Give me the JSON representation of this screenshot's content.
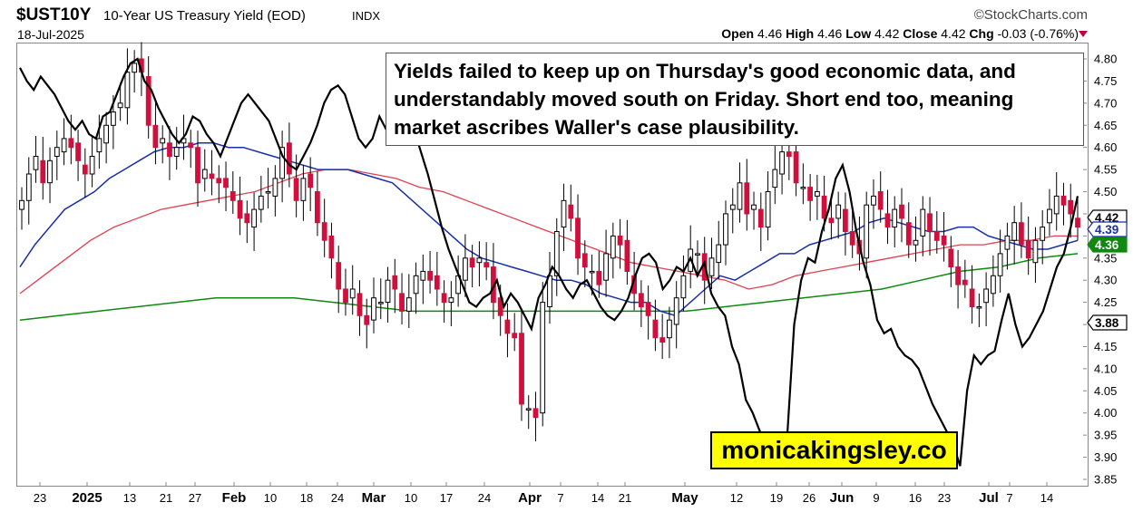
{
  "header": {
    "symbol": "$UST10Y",
    "name": "10-Year US Treasury Yield (EOD)",
    "exchange": "INDX",
    "date": "18-Jul-2025",
    "brand": "©StockCharts.com",
    "open_label": "Open",
    "open": "4.46",
    "high_label": "High",
    "high": "4.46",
    "low_label": "Low",
    "low": "4.42",
    "close_label": "Close",
    "close": "4.42",
    "chg_label": "Chg",
    "chg": "-0.03 (-0.76%)"
  },
  "annotation": "Yields failed to keep up on Thursday's good economic data, and understandably moved south on Friday. Short end too, meaning market ascribes Waller's case plausibility.",
  "watermark": "monicakingsley.co",
  "colors": {
    "up": "#000000",
    "down": "#d0103c",
    "ma_short": "#1a2faa",
    "ma_mid": "#e04050",
    "ma_long": "#118811",
    "overlay": "#000000",
    "watermark_bg": "#ffff00"
  },
  "chart_data": {
    "type": "candlestick",
    "ylim": [
      3.85,
      4.82
    ],
    "yticks": [
      3.85,
      3.9,
      3.95,
      4.0,
      4.05,
      4.1,
      4.15,
      4.2,
      4.25,
      4.3,
      4.35,
      4.4,
      4.45,
      4.5,
      4.55,
      4.6,
      4.65,
      4.7,
      4.75,
      4.8
    ],
    "x_axis_labels": [
      "23",
      "2025",
      "13",
      "21",
      "27",
      "Feb",
      "10",
      "18",
      "24",
      "Mar",
      "10",
      "17",
      "24",
      "Apr",
      "7",
      "14",
      "21",
      "May",
      "12",
      "19",
      "26",
      "Jun",
      "9",
      "16",
      "23",
      "Jul",
      "7",
      "14"
    ],
    "x_axis_bold": [
      "2025",
      "Feb",
      "Mar",
      "Apr",
      "May",
      "Jun",
      "Jul"
    ],
    "price_tags": [
      {
        "value": "4.42",
        "color": "#000000"
      },
      {
        "value": "4.39",
        "color": "#1a2faa"
      },
      {
        "value": "4.36",
        "color": "#118811"
      },
      {
        "value": "3.88",
        "color": "#000000"
      }
    ],
    "closes": [
      4.48,
      4.54,
      4.58,
      4.52,
      4.57,
      4.6,
      4.62,
      4.6,
      4.57,
      4.54,
      4.58,
      4.62,
      4.65,
      4.68,
      4.7,
      4.77,
      4.79,
      4.77,
      4.65,
      4.6,
      4.62,
      4.58,
      4.6,
      4.62,
      4.6,
      4.52,
      4.55,
      4.53,
      4.52,
      4.51,
      4.48,
      4.44,
      4.43,
      4.46,
      4.49,
      4.5,
      4.53,
      4.6,
      4.54,
      4.48,
      4.53,
      4.51,
      4.43,
      4.39,
      4.35,
      4.28,
      4.25,
      4.28,
      4.22,
      4.2,
      4.26,
      4.25,
      4.3,
      4.28,
      4.23,
      4.26,
      4.31,
      4.32,
      4.3,
      4.28,
      4.25,
      4.26,
      4.31,
      4.35,
      4.33,
      4.35,
      4.33,
      4.25,
      4.22,
      4.18,
      4.17,
      4.02,
      4.01,
      3.99,
      4.25,
      4.31,
      4.41,
      4.48,
      4.44,
      4.35,
      4.33,
      4.32,
      4.29,
      4.36,
      4.4,
      4.38,
      4.32,
      4.27,
      4.24,
      4.22,
      4.17,
      4.16,
      4.21,
      4.26,
      4.31,
      4.37,
      4.36,
      4.3,
      4.35,
      4.38,
      4.45,
      4.47,
      4.52,
      4.45,
      4.47,
      4.42,
      4.5,
      4.55,
      4.59,
      4.58,
      4.52,
      4.51,
      4.48,
      4.5,
      4.44,
      4.43,
      4.47,
      4.41,
      4.38,
      4.36,
      4.47,
      4.49,
      4.46,
      4.42,
      4.46,
      4.44,
      4.38,
      4.39,
      4.46,
      4.41,
      4.39,
      4.38,
      4.33,
      4.29,
      4.29,
      4.24,
      4.24,
      4.28,
      4.31,
      4.36,
      4.4,
      4.43,
      4.38,
      4.35,
      4.39,
      4.42,
      4.46,
      4.49,
      4.47,
      4.45,
      4.42
    ],
    "overlay_series": [
      4.78,
      4.75,
      4.73,
      4.76,
      4.74,
      4.72,
      4.69,
      4.66,
      4.64,
      4.66,
      4.63,
      4.62,
      4.67,
      4.68,
      4.72,
      4.76,
      4.79,
      4.8,
      4.75,
      4.73,
      4.69,
      4.66,
      4.63,
      4.61,
      4.63,
      4.67,
      4.66,
      4.63,
      4.61,
      4.58,
      4.62,
      4.66,
      4.7,
      4.72,
      4.7,
      4.68,
      4.66,
      4.62,
      4.58,
      4.56,
      4.55,
      4.58,
      4.61,
      4.65,
      4.7,
      4.73,
      4.74,
      4.72,
      4.67,
      4.62,
      4.6,
      4.62,
      4.67,
      4.64,
      4.7,
      4.71,
      4.68,
      4.64,
      4.59,
      4.54,
      4.48,
      4.42,
      4.37,
      4.33,
      4.29,
      4.25,
      4.24,
      4.26,
      4.27,
      4.3,
      4.24,
      4.27,
      4.25,
      4.22,
      4.19,
      4.26,
      4.29,
      4.33,
      4.31,
      4.28,
      4.26,
      4.29,
      4.3,
      4.27,
      4.24,
      4.22,
      4.21,
      4.23,
      4.26,
      4.31,
      4.35,
      4.36,
      4.34,
      4.28,
      4.3,
      4.33,
      4.32,
      4.35,
      4.31,
      4.34,
      4.27,
      4.24,
      4.22,
      4.15,
      4.11,
      4.03,
      4.0,
      3.96,
      3.93,
      3.9,
      3.88,
      3.95,
      4.2,
      4.3,
      4.35,
      4.34,
      4.41,
      4.46,
      4.53,
      4.56,
      4.5,
      4.41,
      4.34,
      4.29,
      4.21,
      4.18,
      4.19,
      4.15,
      4.13,
      4.12,
      4.1,
      4.06,
      4.02,
      3.99,
      3.96,
      3.93,
      3.88,
      4.05,
      4.13,
      4.11,
      4.13,
      4.14,
      4.21,
      4.27,
      4.2,
      4.15,
      4.17,
      4.2,
      4.23,
      4.28,
      4.33,
      4.36,
      4.42,
      4.49
    ],
    "ma_short_series": [
      4.33,
      4.38,
      4.42,
      4.46,
      4.48,
      4.5,
      4.53,
      4.55,
      4.57,
      4.59,
      4.6,
      4.6,
      4.61,
      4.61,
      4.6,
      4.6,
      4.59,
      4.58,
      4.57,
      4.56,
      4.55,
      4.55,
      4.55,
      4.54,
      4.53,
      4.52,
      4.49,
      4.46,
      4.43,
      4.4,
      4.37,
      4.35,
      4.34,
      4.33,
      4.32,
      4.31,
      4.3,
      4.3,
      4.29,
      4.27,
      4.26,
      4.25,
      4.25,
      4.23,
      4.22,
      4.25,
      4.28,
      4.31,
      4.3,
      4.32,
      4.34,
      4.36,
      4.36,
      4.38,
      4.39,
      4.4,
      4.41,
      4.43,
      4.44,
      4.43,
      4.42,
      4.41,
      4.41,
      4.42,
      4.42,
      4.4,
      4.39,
      4.38,
      4.37,
      4.37,
      4.38,
      4.39
    ],
    "ma_mid_series": [
      4.27,
      4.31,
      4.35,
      4.39,
      4.42,
      4.44,
      4.46,
      4.47,
      4.48,
      4.49,
      4.5,
      4.52,
      4.54,
      4.55,
      4.55,
      4.54,
      4.53,
      4.51,
      4.5,
      4.48,
      4.46,
      4.44,
      4.42,
      4.4,
      4.38,
      4.36,
      4.34,
      4.33,
      4.32,
      4.31,
      4.3,
      4.28,
      4.29,
      4.31,
      4.32,
      4.33,
      4.34,
      4.35,
      4.36,
      4.37,
      4.38,
      4.38,
      4.39,
      4.39,
      4.4,
      4.4
    ],
    "ma_long_series": [
      4.21,
      4.22,
      4.23,
      4.24,
      4.25,
      4.26,
      4.26,
      4.26,
      4.25,
      4.24,
      4.23,
      4.23,
      4.23,
      4.23,
      4.23,
      4.23,
      4.23,
      4.23,
      4.24,
      4.25,
      4.26,
      4.27,
      4.28,
      4.3,
      4.32,
      4.33,
      4.35,
      4.36
    ]
  }
}
